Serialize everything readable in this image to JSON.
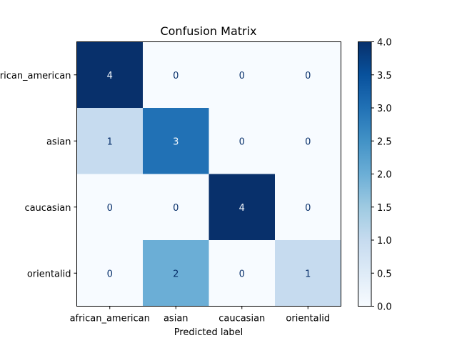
{
  "chart_data": {
    "type": "heatmap",
    "title": "Confusion Matrix",
    "xlabel": "Predicted label",
    "ylabel": "",
    "x_categories": [
      "african_american",
      "asian",
      "caucasian",
      "orientalid"
    ],
    "y_categories": [
      "african_american",
      "asian",
      "caucasian",
      "orientalid"
    ],
    "values": [
      [
        4,
        0,
        0,
        0
      ],
      [
        1,
        3,
        0,
        0
      ],
      [
        0,
        0,
        4,
        0
      ],
      [
        0,
        2,
        0,
        1
      ]
    ],
    "colormap": "Blues",
    "vmin": 0,
    "vmax": 4,
    "colorbar": {
      "ticks": [
        0.0,
        0.5,
        1.0,
        1.5,
        2.0,
        2.5,
        3.0,
        3.5,
        4.0
      ],
      "tick_labels": [
        "0.0",
        "0.5",
        "1.0",
        "1.5",
        "2.0",
        "2.5",
        "3.0",
        "3.5",
        "4.0"
      ]
    }
  }
}
